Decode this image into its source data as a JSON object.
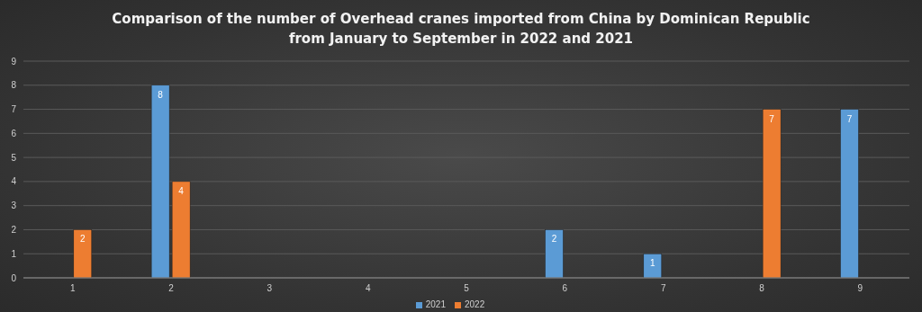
{
  "chart_data": {
    "type": "bar",
    "title": "Comparison of the number of Overhead cranes imported from China by Dominican Republic\nfrom January to September in 2022 and 2021",
    "categories": [
      "1",
      "2",
      "3",
      "4",
      "5",
      "6",
      "7",
      "8",
      "9"
    ],
    "series": [
      {
        "name": "2021",
        "color": "#5b9bd5",
        "values": [
          0,
          8,
          0,
          0,
          0,
          2,
          1,
          0,
          7
        ],
        "value_labels": [
          null,
          "8",
          null,
          null,
          null,
          "2",
          "1",
          null,
          "7"
        ]
      },
      {
        "name": "2022",
        "color": "#ed7d31",
        "values": [
          2,
          4,
          0,
          0,
          0,
          0,
          0,
          7,
          0
        ],
        "value_labels": [
          "2",
          "4",
          null,
          null,
          null,
          null,
          null,
          "7",
          null
        ]
      }
    ],
    "ylim": [
      0,
      9
    ],
    "yticks": [
      0,
      1,
      2,
      3,
      4,
      5,
      6,
      7,
      8,
      9
    ],
    "grid": "y",
    "legend": "bottom"
  }
}
